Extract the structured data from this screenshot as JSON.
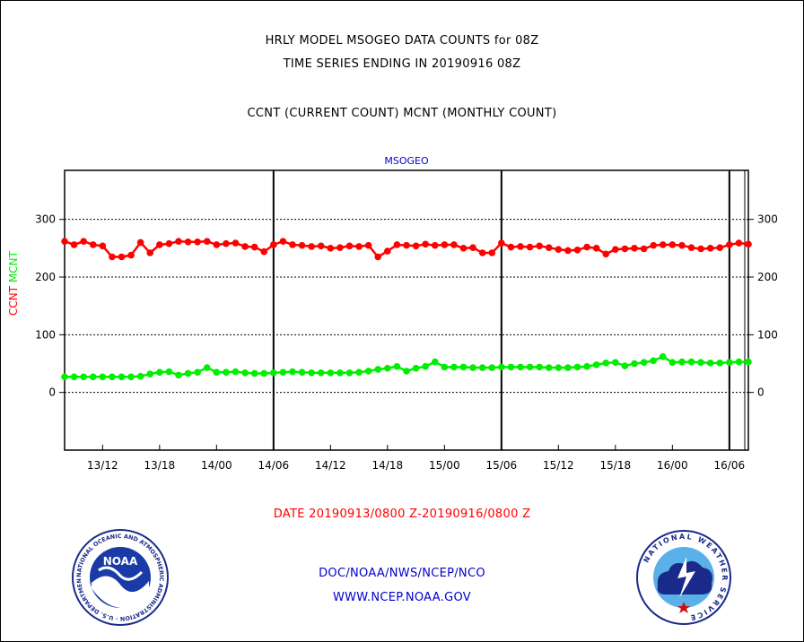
{
  "header": {
    "line1": "HRLY MODEL MSOGEO DATA COUNTS for 08Z",
    "line2": "TIME SERIES ENDING IN 20190916 08Z",
    "line3": "CCNT (CURRENT COUNT) MCNT (MONTHLY COUNT)"
  },
  "footer": {
    "date_range": "DATE 20190913/0800 Z-20190916/0800 Z",
    "org": "DOC/NOAA/NWS/NCEP/NCO",
    "url": "WWW.NCEP.NOAA.GOV"
  },
  "logos": {
    "noaa_text": "NOAA",
    "noaa_ring": "NATIONAL OCEANIC AND ATMOSPHERIC ADMINISTRATION · U.S. DEPARTMENT OF COMMERCE",
    "nws_ring": "NATIONAL WEATHER SERVICE"
  },
  "colors": {
    "ccnt": "#ff0000",
    "mcnt": "#00ee00",
    "title": "#0000cc",
    "date": "#ff0000",
    "footer": "#0000cc"
  },
  "chart_data": {
    "type": "line",
    "title": "MSOGEO",
    "ylabel_parts": [
      {
        "text": "CCNT",
        "color": "#ff0000"
      },
      {
        "text": "MCNT",
        "color": "#00ee00"
      }
    ],
    "ylim": [
      -100,
      385
    ],
    "yticks": [
      0,
      100,
      200,
      300
    ],
    "y_gridlines": [
      0,
      100,
      200,
      300
    ],
    "x_range_hours": [
      0,
      72
    ],
    "x_start": "2019-09-13 08Z",
    "x_ticks": [
      {
        "hour": 4,
        "label": "13/12"
      },
      {
        "hour": 10,
        "label": "13/18"
      },
      {
        "hour": 16,
        "label": "14/00"
      },
      {
        "hour": 22,
        "label": "14/06"
      },
      {
        "hour": 28,
        "label": "14/12"
      },
      {
        "hour": 34,
        "label": "14/18"
      },
      {
        "hour": 40,
        "label": "15/00"
      },
      {
        "hour": 46,
        "label": "15/06"
      },
      {
        "hour": 52,
        "label": "15/12"
      },
      {
        "hour": 58,
        "label": "15/18"
      },
      {
        "hour": 64,
        "label": "16/00"
      },
      {
        "hour": 70,
        "label": "16/06"
      }
    ],
    "day_boundaries_hours": [
      22,
      46,
      70
    ],
    "series": [
      {
        "name": "CCNT",
        "color": "#ff0000",
        "values": [
          262,
          256,
          262,
          256,
          254,
          235,
          235,
          238,
          260,
          242,
          256,
          258,
          262,
          261,
          261,
          262,
          256,
          258,
          259,
          253,
          252,
          244,
          256,
          262,
          256,
          255,
          253,
          254,
          250,
          251,
          254,
          253,
          255,
          235,
          245,
          256,
          255,
          254,
          257,
          255,
          256,
          256,
          250,
          251,
          242,
          242,
          259,
          252,
          253,
          252,
          254,
          251,
          248,
          246,
          247,
          252,
          250,
          240,
          248,
          249,
          250,
          249,
          255,
          256,
          256,
          255,
          251,
          249,
          250,
          251,
          256,
          259,
          257
        ]
      },
      {
        "name": "MCNT",
        "color": "#00ee00",
        "values": [
          27,
          27,
          27,
          27,
          27,
          27,
          27,
          27,
          28,
          32,
          35,
          36,
          30,
          33,
          35,
          43,
          35,
          35,
          36,
          34,
          33,
          33,
          34,
          35,
          36,
          35,
          34,
          34,
          34,
          34,
          34,
          35,
          37,
          40,
          42,
          45,
          37,
          42,
          45,
          53,
          44,
          44,
          44,
          43,
          43,
          43,
          44,
          44,
          44,
          44,
          44,
          43,
          43,
          43,
          44,
          45,
          48,
          51,
          52,
          46,
          50,
          52,
          55,
          62,
          52,
          53,
          53,
          52,
          51,
          51,
          52,
          53,
          53
        ]
      }
    ]
  }
}
